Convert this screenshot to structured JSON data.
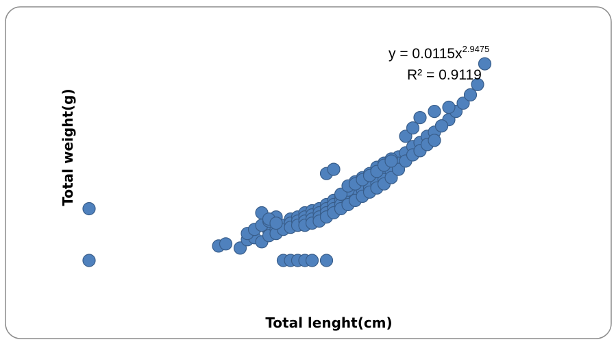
{
  "chart_data": {
    "type": "scatter",
    "title": "",
    "xlabel": "Total lenght(cm)",
    "ylabel": "Total weight(g)",
    "xlim": [
      0,
      60
    ],
    "ylim": [
      0,
      1000
    ],
    "grid": false,
    "legend": "none",
    "marker_color": "#4F81BD",
    "marker_edge": "#385D8A",
    "annotation": {
      "equation_prefix": "y = 0.0115x",
      "equation_exponent": "2.9475",
      "r_squared": "R² = 0.9119"
    },
    "series": [
      {
        "points": [
          [
            0,
            0
          ],
          [
            0,
            250
          ],
          [
            55,
            950
          ],
          [
            27,
            0
          ],
          [
            28,
            0
          ],
          [
            29,
            0
          ],
          [
            30,
            0
          ],
          [
            31,
            0
          ],
          [
            33,
            0
          ],
          [
            18,
            70
          ],
          [
            19,
            80
          ],
          [
            21,
            60
          ],
          [
            22,
            100
          ],
          [
            23,
            110
          ],
          [
            24,
            90
          ],
          [
            25,
            140
          ],
          [
            25,
            120
          ],
          [
            26,
            150
          ],
          [
            26,
            130
          ],
          [
            27,
            170
          ],
          [
            27,
            150
          ],
          [
            28,
            200
          ],
          [
            28,
            180
          ],
          [
            28,
            160
          ],
          [
            29,
            210
          ],
          [
            29,
            190
          ],
          [
            29,
            170
          ],
          [
            30,
            230
          ],
          [
            30,
            210
          ],
          [
            30,
            190
          ],
          [
            30,
            170
          ],
          [
            31,
            240
          ],
          [
            31,
            220
          ],
          [
            31,
            200
          ],
          [
            31,
            180
          ],
          [
            32,
            250
          ],
          [
            32,
            230
          ],
          [
            32,
            210
          ],
          [
            32,
            190
          ],
          [
            33,
            270
          ],
          [
            33,
            250
          ],
          [
            33,
            230
          ],
          [
            33,
            210
          ],
          [
            34,
            290
          ],
          [
            34,
            270
          ],
          [
            34,
            250
          ],
          [
            34,
            230
          ],
          [
            35,
            310
          ],
          [
            35,
            290
          ],
          [
            35,
            270
          ],
          [
            35,
            250
          ],
          [
            36,
            330
          ],
          [
            36,
            310
          ],
          [
            36,
            290
          ],
          [
            36,
            270
          ],
          [
            37,
            350
          ],
          [
            37,
            330
          ],
          [
            37,
            310
          ],
          [
            37,
            290
          ],
          [
            38,
            380
          ],
          [
            38,
            360
          ],
          [
            38,
            340
          ],
          [
            38,
            310
          ],
          [
            39,
            400
          ],
          [
            39,
            370
          ],
          [
            39,
            350
          ],
          [
            39,
            330
          ],
          [
            40,
            420
          ],
          [
            40,
            390
          ],
          [
            40,
            370
          ],
          [
            40,
            350
          ],
          [
            41,
            440
          ],
          [
            41,
            410
          ],
          [
            41,
            390
          ],
          [
            41,
            370
          ],
          [
            42,
            460
          ],
          [
            42,
            430
          ],
          [
            42,
            400
          ],
          [
            43,
            500
          ],
          [
            43,
            470
          ],
          [
            43,
            440
          ],
          [
            44,
            520
          ],
          [
            44,
            480
          ],
          [
            45,
            550
          ],
          [
            45,
            510
          ],
          [
            46,
            570
          ],
          [
            46,
            530
          ],
          [
            47,
            600
          ],
          [
            47,
            560
          ],
          [
            48,
            620
          ],
          [
            48,
            580
          ],
          [
            49,
            650
          ],
          [
            50,
            680
          ],
          [
            51,
            720
          ],
          [
            52,
            760
          ],
          [
            53,
            800
          ],
          [
            54,
            850
          ],
          [
            33,
            420
          ],
          [
            34,
            440
          ],
          [
            44,
            600
          ],
          [
            45,
            640
          ],
          [
            46,
            690
          ],
          [
            48,
            720
          ],
          [
            49,
            650
          ],
          [
            50,
            740
          ],
          [
            22,
            130
          ],
          [
            23,
            150
          ],
          [
            24,
            170
          ],
          [
            25,
            190
          ],
          [
            26,
            210
          ],
          [
            24,
            230
          ],
          [
            25,
            200
          ],
          [
            26,
            180
          ],
          [
            36,
            340
          ],
          [
            37,
            380
          ],
          [
            38,
            400
          ],
          [
            39,
            420
          ],
          [
            40,
            450
          ],
          [
            41,
            470
          ],
          [
            42,
            490
          ],
          [
            35,
            320
          ],
          [
            36,
            360
          ],
          [
            37,
            370
          ],
          [
            38,
            390
          ],
          [
            39,
            410
          ],
          [
            40,
            430
          ],
          [
            41,
            460
          ],
          [
            42,
            480
          ]
        ]
      }
    ]
  }
}
